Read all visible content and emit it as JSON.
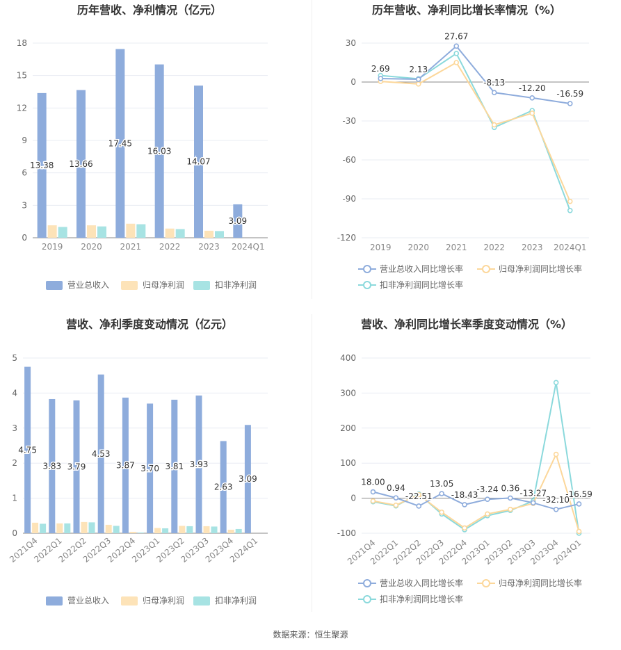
{
  "source": "数据来源：恒生聚源",
  "colors": {
    "revenue": "#8eacdc",
    "np_parent": "#fde3b8",
    "np_deduct": "#a7e3e3",
    "revenue_line": "#8eacdc",
    "np_parent_line": "#fcd79a",
    "np_deduct_line": "#8bd9dc"
  },
  "chart_data": [
    {
      "type": "bar",
      "title": "历年营收、净利情况（亿元）",
      "categories": [
        "2019",
        "2020",
        "2021",
        "2022",
        "2023",
        "2024Q1"
      ],
      "ylim": [
        0,
        18
      ],
      "yticks": [
        0,
        3,
        6,
        9,
        12,
        15,
        18
      ],
      "series": [
        {
          "name": "营业总收入",
          "values": [
            13.38,
            13.66,
            17.45,
            16.03,
            14.07,
            3.09
          ]
        },
        {
          "name": "归母净利润",
          "values": [
            1.15,
            1.15,
            1.3,
            0.85,
            0.65,
            0.0
          ]
        },
        {
          "name": "扣非净利润",
          "values": [
            1.0,
            1.05,
            1.25,
            0.8,
            0.62,
            0.0
          ]
        }
      ],
      "data_labels": [
        "13.38",
        "13.66",
        "17.45",
        "16.03",
        "14.07",
        "3.09"
      ],
      "legend_position": "bottom",
      "grid": true
    },
    {
      "type": "line",
      "title": "历年营收、净利同比增长率情况（%）",
      "categories": [
        "2019",
        "2020",
        "2021",
        "2022",
        "2023",
        "2024Q1"
      ],
      "ylim": [
        -120,
        30
      ],
      "yticks": [
        30,
        0,
        -30,
        -60,
        -90,
        -120
      ],
      "series": [
        {
          "name": "营业总收入同比增长率",
          "values": [
            2.69,
            2.13,
            27.67,
            -8.13,
            -12.2,
            -16.59
          ]
        },
        {
          "name": "归母净利润同比增长率",
          "values": [
            0.5,
            -1.5,
            15.0,
            -33.0,
            -24.0,
            -92.0
          ]
        },
        {
          "name": "扣非净利润同比增长率",
          "values": [
            5.0,
            2.5,
            22.0,
            -35.0,
            -22.0,
            -99.0
          ]
        }
      ],
      "data_labels": [
        "2.69",
        "2.13",
        "27.67",
        "-8.13",
        "-12.20",
        "-16.59"
      ],
      "legend_position": "bottom",
      "grid": true
    },
    {
      "type": "bar",
      "title": "营收、净利季度变动情况（亿元）",
      "categories": [
        "2021Q4",
        "2022Q1",
        "2022Q2",
        "2022Q3",
        "2022Q4",
        "2023Q1",
        "2023Q2",
        "2023Q3",
        "2023Q4",
        "2024Q1"
      ],
      "ylim": [
        0,
        5
      ],
      "yticks": [
        0,
        1,
        2,
        3,
        4,
        5
      ],
      "series": [
        {
          "name": "营业总收入",
          "values": [
            4.75,
            3.83,
            3.79,
            4.53,
            3.87,
            3.7,
            3.81,
            3.93,
            2.63,
            3.09
          ]
        },
        {
          "name": "归母净利润",
          "values": [
            0.3,
            0.28,
            0.32,
            0.24,
            0.04,
            0.15,
            0.21,
            0.2,
            0.1,
            0.0
          ]
        },
        {
          "name": "扣非净利润",
          "values": [
            0.27,
            0.28,
            0.31,
            0.21,
            0.02,
            0.14,
            0.2,
            0.19,
            0.12,
            0.0
          ]
        }
      ],
      "data_labels": [
        "4.75",
        "3.83",
        "3.79",
        "4.53",
        "3.87",
        "3.70",
        "3.81",
        "3.93",
        "2.63",
        "3.09"
      ],
      "legend_position": "bottom",
      "grid": true
    },
    {
      "type": "line",
      "title": "营收、净利同比增长率季度变动情况（%）",
      "categories": [
        "2021Q4",
        "2022Q1",
        "2022Q2",
        "2022Q3",
        "2022Q4",
        "2023Q1",
        "2023Q2",
        "2023Q3",
        "2023Q4",
        "2024Q1"
      ],
      "ylim": [
        -100,
        400
      ],
      "yticks": [
        400,
        300,
        200,
        100,
        0,
        -100
      ],
      "series": [
        {
          "name": "营业总收入同比增长率",
          "values": [
            18.0,
            0.94,
            -22.51,
            13.05,
            -18.43,
            -3.24,
            0.36,
            -13.27,
            -32.1,
            -16.59
          ]
        },
        {
          "name": "归母净利润同比增长率",
          "values": [
            -8.0,
            -20.0,
            10.0,
            -40.0,
            -85.0,
            -45.0,
            -32.0,
            -15.0,
            125.0,
            -95.0
          ]
        },
        {
          "name": "扣非净利润同比增长率",
          "values": [
            -10.0,
            -22.0,
            12.0,
            -45.0,
            -90.0,
            -50.0,
            -35.0,
            -8.0,
            330.0,
            -100.0
          ]
        }
      ],
      "data_labels": [
        "18.00",
        "0.94",
        "-22.51",
        "13.05",
        "-18.43",
        "-3.24",
        "0.36",
        "-13.27",
        "-32.10",
        "-16.59"
      ],
      "legend_position": "bottom",
      "grid": true
    }
  ]
}
